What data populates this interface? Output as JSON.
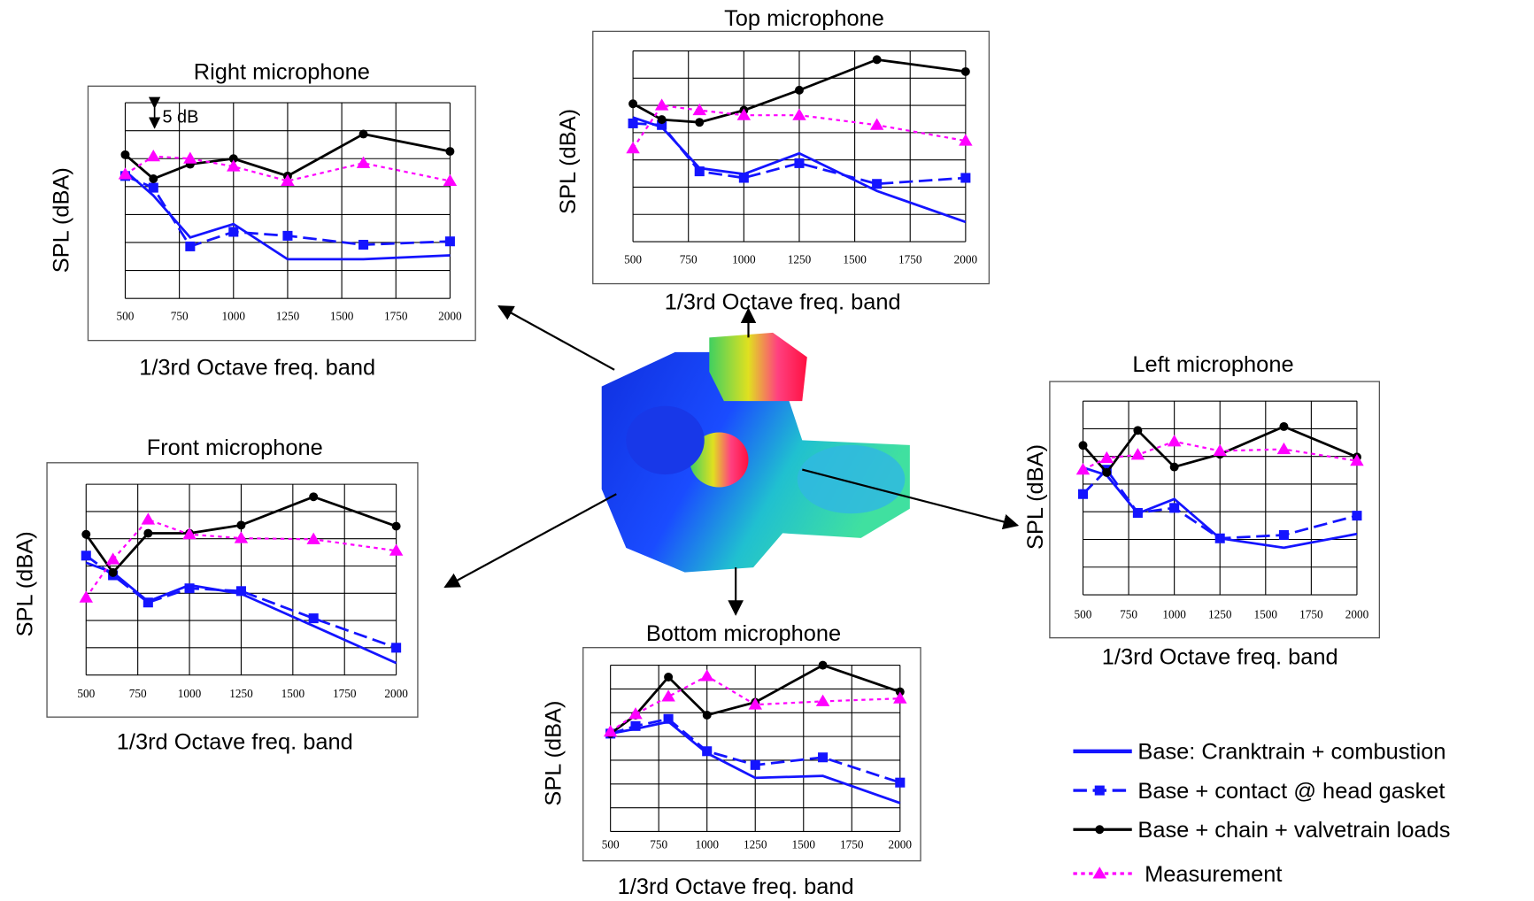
{
  "chart_data": [
    {
      "type": "line",
      "title": "Right microphone",
      "ylabel": "SPL  (dBA)",
      "xlabel": "1/3rd Octave freq. band",
      "annotation": "5 dB",
      "x": [
        500,
        630,
        800,
        1000,
        1250,
        1600,
        2000
      ],
      "xlim": [
        500,
        2000
      ],
      "xticks": [
        500,
        750,
        1000,
        1250,
        1500,
        1750,
        2000
      ],
      "ylim": [
        0,
        35
      ],
      "ygrid": [
        0,
        5,
        10,
        15,
        20,
        25,
        30,
        35
      ],
      "series": [
        {
          "name": "Base: Cranktrain + combustion",
          "color": "#1414ff",
          "dash": "solid",
          "marker": "none",
          "values": [
            22.8,
            18.4,
            10.9,
            13.3,
            7,
            7,
            7.7
          ]
        },
        {
          "name": "Base + contact @ head gasket",
          "color": "#1414ff",
          "dash": "dashed",
          "marker": "square",
          "values": [
            21.9,
            19.8,
            9.3,
            11.9,
            11.2,
            9.6,
            10.2
          ]
        },
        {
          "name": "Base + chain + valvetrain loads",
          "color": "#000000",
          "dash": "solid",
          "marker": "circle",
          "values": [
            25.7,
            21.4,
            24,
            25,
            21.9,
            29.4,
            26.3
          ]
        },
        {
          "name": "Measurement",
          "color": "#ff00ff",
          "dash": "dotted",
          "marker": "triangle",
          "values": [
            22.2,
            25.4,
            25,
            23.6,
            21,
            24.2,
            21
          ]
        }
      ]
    },
    {
      "type": "line",
      "title": "Top microphone",
      "ylabel": "SPL  (dBA)",
      "xlabel": "1/3rd Octave freq. band",
      "x": [
        500,
        630,
        800,
        1000,
        1250,
        1600,
        2000
      ],
      "xlim": [
        500,
        2000
      ],
      "xticks": [
        500,
        750,
        1000,
        1250,
        1500,
        1750,
        2000
      ],
      "ylim": [
        0,
        35
      ],
      "ygrid": [
        0,
        5,
        10,
        15,
        20,
        25,
        30,
        35
      ],
      "series": [
        {
          "name": "Base: Cranktrain + combustion",
          "color": "#1414ff",
          "dash": "solid",
          "marker": "none",
          "values": [
            22.8,
            21,
            13.5,
            12.4,
            16.2,
            9.3,
            3.6
          ]
        },
        {
          "name": "Base + contact @ head gasket",
          "color": "#1414ff",
          "dash": "dashed",
          "marker": "square",
          "values": [
            21.7,
            21.4,
            12.9,
            11.7,
            14.4,
            10.6,
            11.7
          ]
        },
        {
          "name": "Base + chain + valvetrain loads",
          "color": "#000000",
          "dash": "solid",
          "marker": "circle",
          "values": [
            25.3,
            22.4,
            21.9,
            24.1,
            27.8,
            33.4,
            31.2
          ]
        },
        {
          "name": "Measurement",
          "color": "#ff00ff",
          "dash": "dotted",
          "marker": "triangle",
          "values": [
            17.1,
            25,
            24.1,
            23.2,
            23.2,
            21.4,
            18.5
          ]
        }
      ]
    },
    {
      "type": "line",
      "title": "Left microphone",
      "ylabel": "SPL  (dBA)",
      "xlabel": "1/3rd Octave freq. band",
      "x": [
        500,
        630,
        800,
        1000,
        1250,
        1600,
        2000
      ],
      "xlim": [
        500,
        2000
      ],
      "xticks": [
        500,
        750,
        1000,
        1250,
        1500,
        1750,
        2000
      ],
      "ylim": [
        0,
        35
      ],
      "ygrid": [
        0,
        5,
        10,
        15,
        20,
        25,
        30,
        35
      ],
      "series": [
        {
          "name": "Base: Cranktrain + combustion",
          "color": "#1414ff",
          "dash": "solid",
          "marker": "none",
          "values": [
            23,
            21.6,
            14.7,
            17.3,
            10.2,
            8.5,
            11
          ]
        },
        {
          "name": "Base + contact @ head gasket",
          "color": "#1414ff",
          "dash": "dashed",
          "marker": "square",
          "values": [
            18.2,
            22.6,
            14.8,
            15.7,
            10.2,
            10.8,
            14.3
          ]
        },
        {
          "name": "Base + chain + valvetrain loads",
          "color": "#000000",
          "dash": "solid",
          "marker": "circle",
          "values": [
            27,
            22.1,
            29.7,
            23.1,
            25.4,
            30.4,
            24.9
          ]
        },
        {
          "name": "Measurement",
          "color": "#ff00ff",
          "dash": "dotted",
          "marker": "triangle",
          "values": [
            22.6,
            24.7,
            25.3,
            27.7,
            26,
            26.3,
            24.2
          ]
        }
      ]
    },
    {
      "type": "line",
      "title": "Front microphone",
      "ylabel": "SPL  (dBA)",
      "xlabel": "1/3rd Octave freq. band",
      "x": [
        500,
        630,
        800,
        1000,
        1250,
        1600,
        2000
      ],
      "xlim": [
        500,
        2000
      ],
      "xticks": [
        500,
        750,
        1000,
        1250,
        1500,
        1750,
        2000
      ],
      "ylim": [
        0,
        35
      ],
      "ygrid": [
        0,
        5,
        10,
        15,
        20,
        25,
        30,
        35
      ],
      "series": [
        {
          "name": "Base: Cranktrain + combustion",
          "color": "#1414ff",
          "dash": "solid",
          "marker": "none",
          "values": [
            20.6,
            18.8,
            13.5,
            16.5,
            14.9,
            9,
            2.2
          ]
        },
        {
          "name": "Base + contact @ head gasket",
          "color": "#1414ff",
          "dash": "dashed",
          "marker": "square",
          "values": [
            21.9,
            18.3,
            13.3,
            15.9,
            15.4,
            10.4,
            5
          ]
        },
        {
          "name": "Base + chain + valvetrain loads",
          "color": "#000000",
          "dash": "solid",
          "marker": "circle",
          "values": [
            25.8,
            18.8,
            26,
            26,
            27.5,
            32.7,
            27.3
          ]
        },
        {
          "name": "Measurement",
          "color": "#ff00ff",
          "dash": "dotted",
          "marker": "triangle",
          "values": [
            14.2,
            21.2,
            28.5,
            25.8,
            25.1,
            24.9,
            22.8
          ]
        }
      ]
    },
    {
      "type": "line",
      "title": "Bottom microphone",
      "ylabel": "SPL  (dBA)",
      "xlabel": "1/3rd Octave freq. band",
      "x": [
        500,
        630,
        800,
        1000,
        1250,
        1600,
        2000
      ],
      "xlim": [
        500,
        2000
      ],
      "xticks": [
        500,
        750,
        1000,
        1250,
        1500,
        1750,
        2000
      ],
      "ylim": [
        0,
        35
      ],
      "ygrid": [
        0,
        5,
        10,
        15,
        20,
        25,
        30,
        35
      ],
      "series": [
        {
          "name": "Base: Cranktrain + combustion",
          "color": "#1414ff",
          "dash": "solid",
          "marker": "none",
          "values": [
            20.6,
            21.6,
            23.1,
            16.5,
            11.3,
            11.7,
            6
          ]
        },
        {
          "name": "Base + contact @ head gasket",
          "color": "#1414ff",
          "dash": "dashed",
          "marker": "square",
          "values": [
            20.6,
            22.2,
            23.7,
            16.9,
            14,
            15.6,
            10.3
          ]
        },
        {
          "name": "Base + chain + valvetrain loads",
          "color": "#000000",
          "dash": "solid",
          "marker": "circle",
          "values": [
            20.6,
            24.5,
            32.5,
            24.5,
            27.2,
            35,
            29.4
          ]
        },
        {
          "name": "Measurement",
          "color": "#ff00ff",
          "dash": "dotted",
          "marker": "triangle",
          "values": [
            21,
            24.7,
            28.4,
            32.7,
            26.7,
            27.4,
            28
          ]
        }
      ]
    }
  ]
}
